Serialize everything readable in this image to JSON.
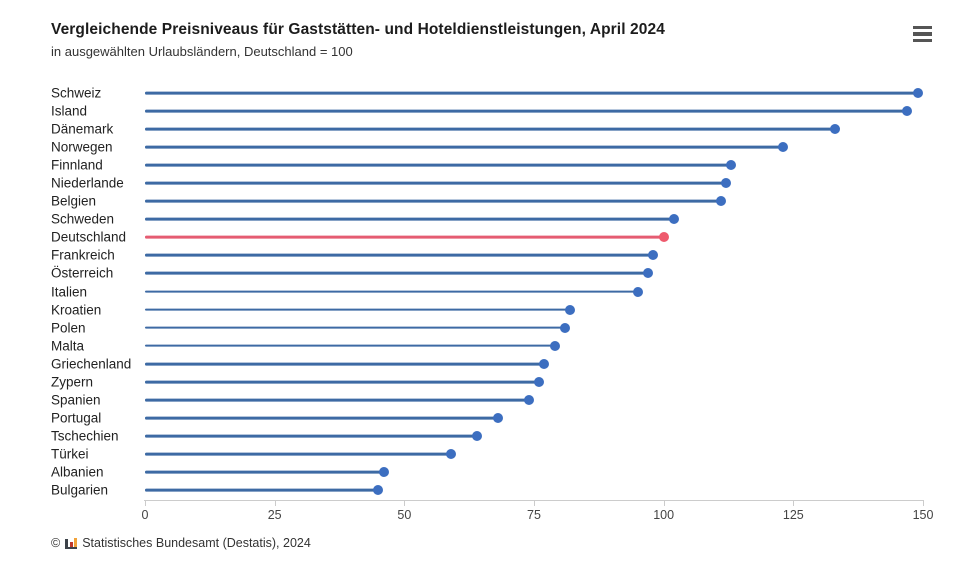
{
  "header": {
    "title": "Vergleichende Preisniveaus für Gaststätten- und Hoteldienstleistungen, April 2024",
    "subtitle": "in ausgewählten Urlaubsländern, Deutschland = 100"
  },
  "menu": {
    "icon": "hamburger-menu-icon"
  },
  "chart_data": {
    "type": "bar",
    "subtype": "horizontal-lollipop",
    "title": "Vergleichende Preisniveaus für Gaststätten- und Hoteldienstleistungen, April 2024",
    "subtitle": "in ausgewählten Urlaubsländern, Deutschland = 100",
    "categories": [
      "Schweiz",
      "Island",
      "Dänemark",
      "Norwegen",
      "Finnland",
      "Niederlande",
      "Belgien",
      "Schweden",
      "Deutschland",
      "Frankreich",
      "Österreich",
      "Italien",
      "Kroatien",
      "Polen",
      "Malta",
      "Griechenland",
      "Zypern",
      "Spanien",
      "Portugal",
      "Tschechien",
      "Türkei",
      "Albanien",
      "Bulgarien"
    ],
    "values": [
      149,
      147,
      133,
      123,
      113,
      112,
      111,
      102,
      100,
      98,
      97,
      95,
      82,
      81,
      79,
      77,
      76,
      74,
      68,
      64,
      59,
      46,
      45
    ],
    "highlight_category": "Deutschland",
    "reference_value": 100,
    "xlabel": "",
    "ylabel": "",
    "xlim": [
      0,
      150
    ],
    "x_ticks": [
      0,
      25,
      50,
      75,
      100,
      125,
      150
    ],
    "grid": false,
    "legend": "none",
    "colors": {
      "stem": "#3d6aa4",
      "dot": "#3c6ec0",
      "highlight_stem": "#e55c72",
      "highlight_dot": "#ee5a6d",
      "axis": "#cccccc",
      "tick_label": "#444444"
    }
  },
  "footer": {
    "copyright": "©",
    "logo": "destatis-bar-chart-icon",
    "text": "Statistisches Bundesamt (Destatis), 2024"
  }
}
